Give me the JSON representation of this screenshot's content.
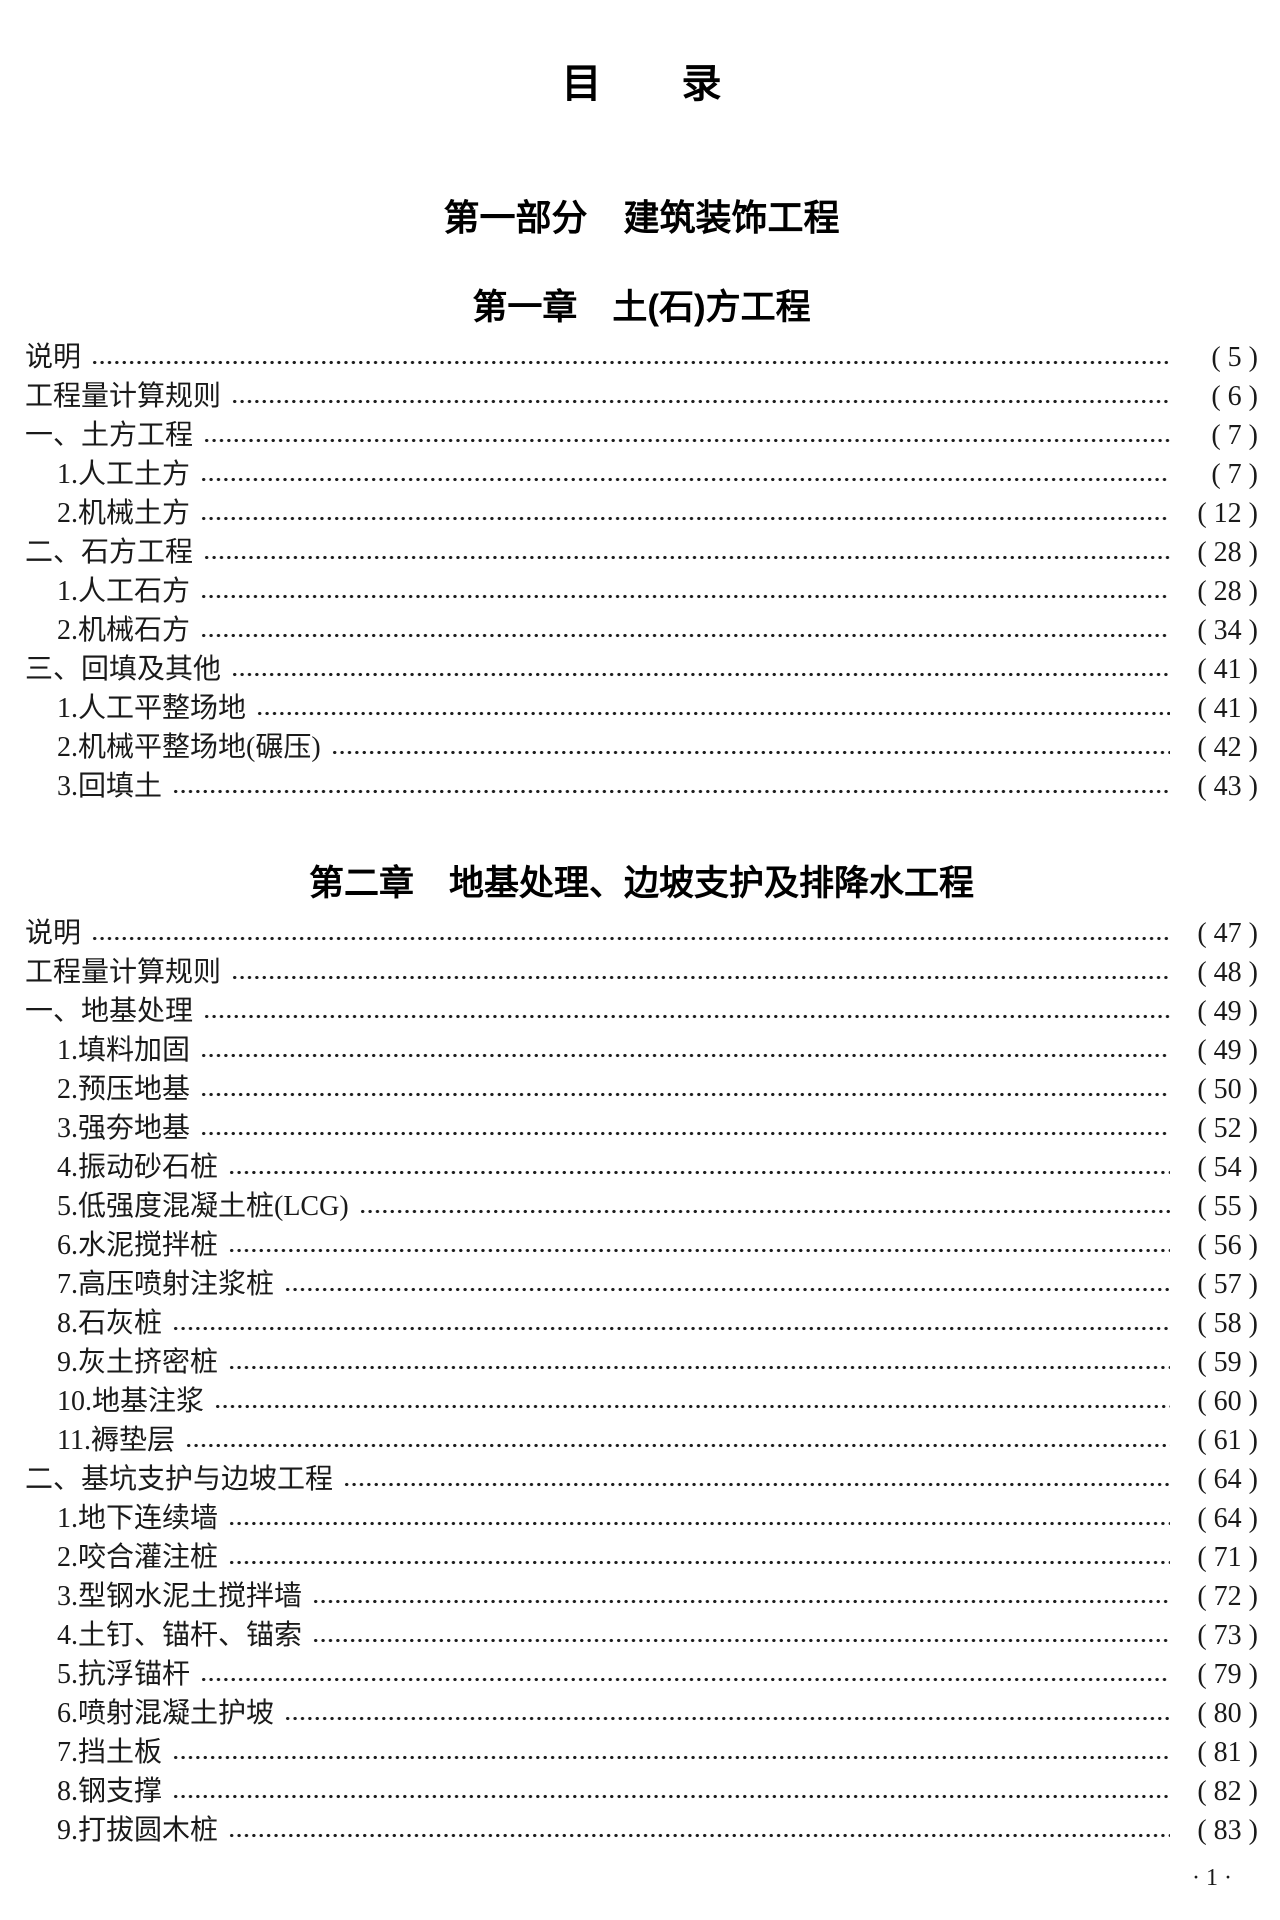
{
  "page": {
    "title": "目　　录",
    "footer": "· 1 ·"
  },
  "part": {
    "heading": "第一部分　建筑装饰工程"
  },
  "colors": {
    "text": "#1a1a1a",
    "background": "#ffffff"
  },
  "chapters": [
    {
      "heading": "第一章　土(石)方工程",
      "entries": [
        {
          "label": "说明",
          "page": "( 5 )",
          "indent": 0
        },
        {
          "label": "工程量计算规则",
          "page": "( 6 )",
          "indent": 0
        },
        {
          "label": "一、土方工程",
          "page": "( 7 )",
          "indent": 0
        },
        {
          "label": "1.人工土方",
          "page": "( 7 )",
          "indent": 1
        },
        {
          "label": "2.机械土方",
          "page": "( 12 )",
          "indent": 1
        },
        {
          "label": "二、石方工程",
          "page": "( 28 )",
          "indent": 0
        },
        {
          "label": "1.人工石方",
          "page": "( 28 )",
          "indent": 1
        },
        {
          "label": "2.机械石方",
          "page": "( 34 )",
          "indent": 1
        },
        {
          "label": "三、回填及其他",
          "page": "( 41 )",
          "indent": 0
        },
        {
          "label": "1.人工平整场地",
          "page": "( 41 )",
          "indent": 1
        },
        {
          "label": "2.机械平整场地(碾压)",
          "page": "( 42 )",
          "indent": 1
        },
        {
          "label": "3.回填土",
          "page": "( 43 )",
          "indent": 1
        }
      ]
    },
    {
      "heading": "第二章　地基处理、边坡支护及排降水工程",
      "entries": [
        {
          "label": "说明",
          "page": "( 47 )",
          "indent": 0
        },
        {
          "label": "工程量计算规则",
          "page": "( 48 )",
          "indent": 0
        },
        {
          "label": "一、地基处理",
          "page": "( 49 )",
          "indent": 0
        },
        {
          "label": "1.填料加固",
          "page": "( 49 )",
          "indent": 1
        },
        {
          "label": "2.预压地基",
          "page": "( 50 )",
          "indent": 1
        },
        {
          "label": "3.强夯地基",
          "page": "( 52 )",
          "indent": 1
        },
        {
          "label": "4.振动砂石桩",
          "page": "( 54 )",
          "indent": 1
        },
        {
          "label": "5.低强度混凝土桩(LCG)",
          "page": "( 55 )",
          "indent": 1
        },
        {
          "label": "6.水泥搅拌桩",
          "page": "( 56 )",
          "indent": 1
        },
        {
          "label": "7.高压喷射注浆桩",
          "page": "( 57 )",
          "indent": 1
        },
        {
          "label": "8.石灰桩",
          "page": "( 58 )",
          "indent": 1
        },
        {
          "label": "9.灰土挤密桩",
          "page": "( 59 )",
          "indent": 1
        },
        {
          "label": "10.地基注浆",
          "page": "( 60 )",
          "indent": 1
        },
        {
          "label": "11.褥垫层",
          "page": "( 61 )",
          "indent": 1
        },
        {
          "label": "二、基坑支护与边坡工程",
          "page": "( 64 )",
          "indent": 0
        },
        {
          "label": "1.地下连续墙",
          "page": "( 64 )",
          "indent": 1
        },
        {
          "label": "2.咬合灌注桩",
          "page": "( 71 )",
          "indent": 1
        },
        {
          "label": "3.型钢水泥土搅拌墙",
          "page": "( 72 )",
          "indent": 1
        },
        {
          "label": "4.土钉、锚杆、锚索",
          "page": "( 73 )",
          "indent": 1
        },
        {
          "label": "5.抗浮锚杆",
          "page": "( 79 )",
          "indent": 1
        },
        {
          "label": "6.喷射混凝土护坡",
          "page": "( 80 )",
          "indent": 1
        },
        {
          "label": "7.挡土板",
          "page": "( 81 )",
          "indent": 1
        },
        {
          "label": "8.钢支撑",
          "page": "( 82 )",
          "indent": 1
        },
        {
          "label": "9.打拔圆木桩",
          "page": "( 83 )",
          "indent": 1
        }
      ]
    }
  ]
}
